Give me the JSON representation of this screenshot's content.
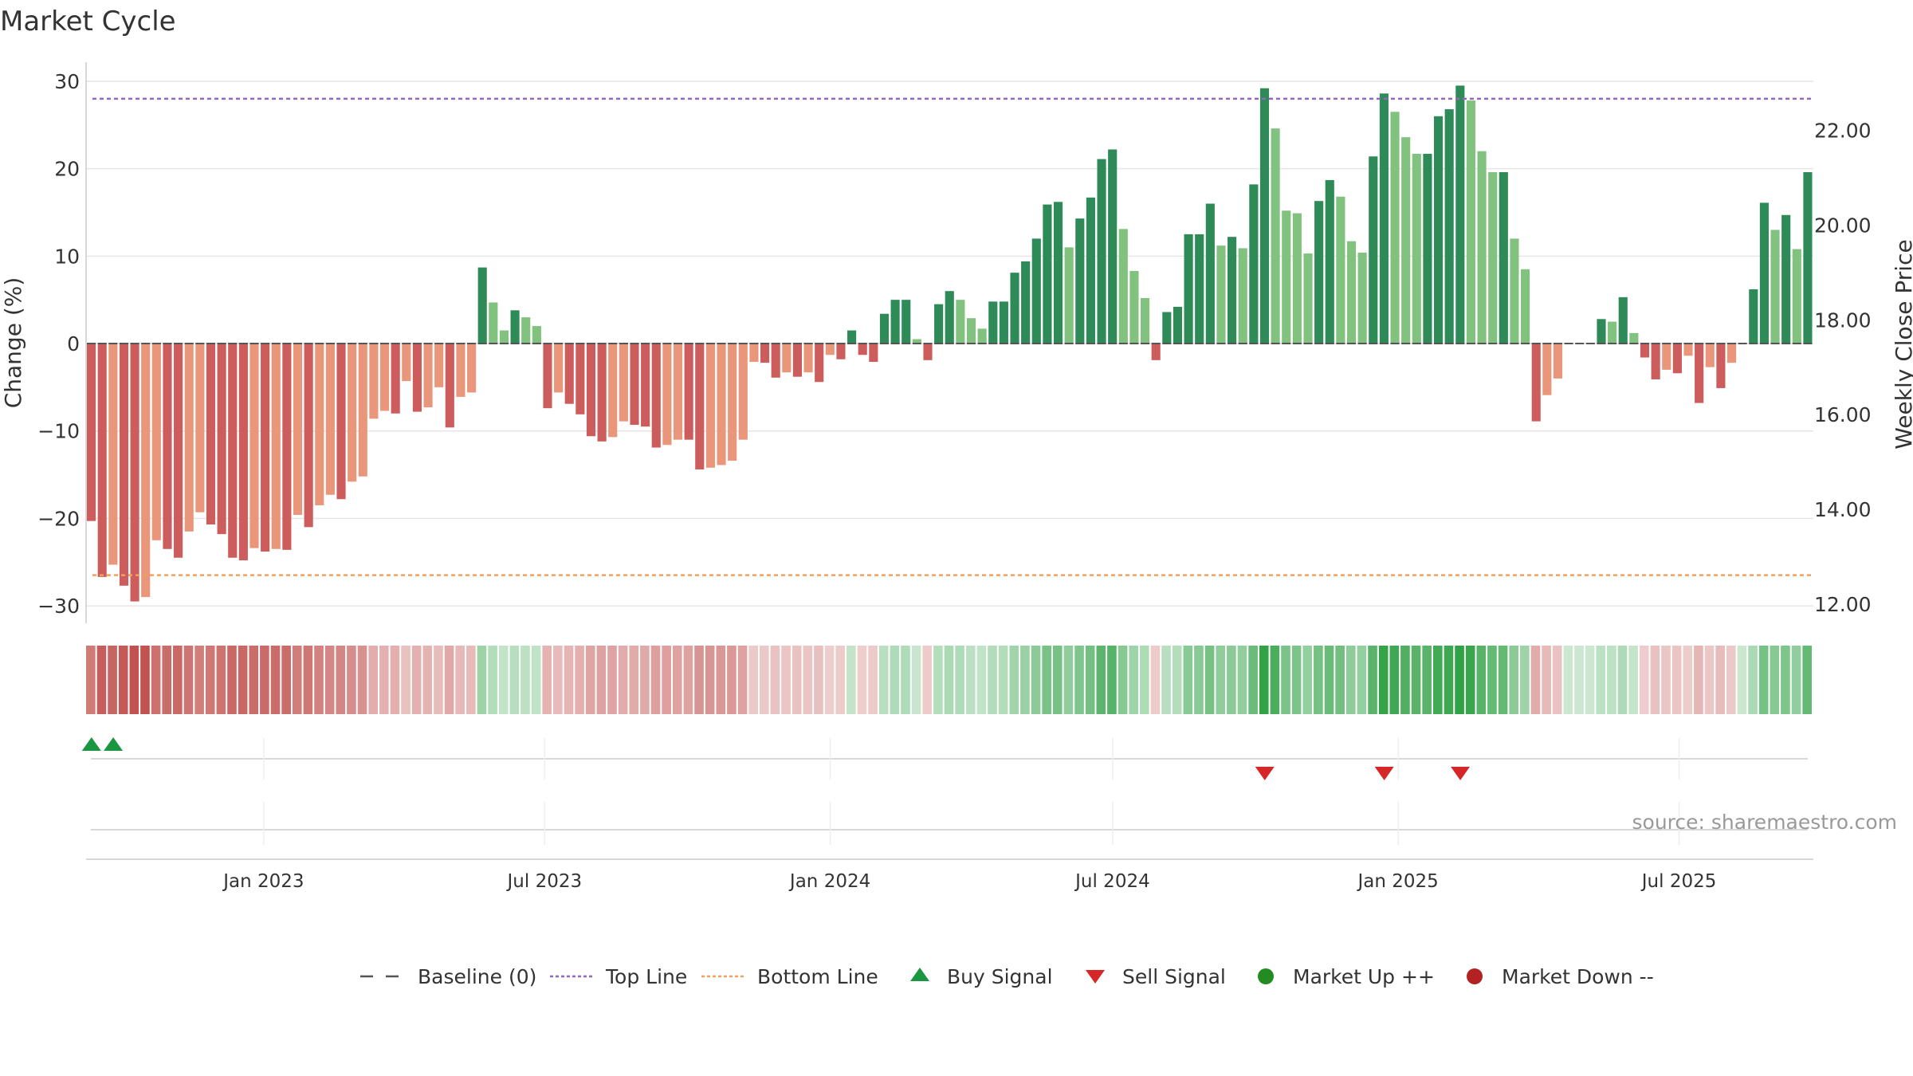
{
  "chart_data": {
    "type": "bar",
    "title": "Market Cycle",
    "ylabel": "Change (%)",
    "y2label": "Weekly Close Price",
    "ylim": [
      -32,
      32
    ],
    "y2lim": [
      11.6,
      23.4
    ],
    "yticks": [
      30,
      20,
      10,
      0,
      -10,
      -20,
      -30
    ],
    "ytick_labels": [
      "30",
      "20",
      "10",
      "0",
      "−10",
      "−20",
      "−30"
    ],
    "y2ticks": [
      22,
      20,
      18,
      16,
      14,
      12
    ],
    "y2tick_labels": [
      "22.00",
      "20.00",
      "18.00",
      "16.00",
      "14.00",
      "12.00"
    ],
    "x_start": "2022-09-12",
    "x_step_days": 7,
    "xticks": [
      {
        "date": "2023-01-01",
        "label": "Jan 2023"
      },
      {
        "date": "2023-07-01",
        "label": "Jul 2023"
      },
      {
        "date": "2024-01-01",
        "label": "Jan 2024"
      },
      {
        "date": "2024-07-01",
        "label": "Jul 2024"
      },
      {
        "date": "2025-01-01",
        "label": "Jan 2025"
      },
      {
        "date": "2025-07-01",
        "label": "Jul 2025"
      }
    ],
    "top_line": 28,
    "bottom_line": -26.5,
    "baseline": 0,
    "values": [
      -20.3,
      -26.7,
      -25.3,
      -27.7,
      -29.5,
      -29,
      -22.5,
      -23.5,
      -24.5,
      -21.5,
      -19.3,
      -20.7,
      -21.8,
      -24.5,
      -24.8,
      -23.4,
      -23.8,
      -23.5,
      -23.6,
      -19.6,
      -21,
      -18.5,
      -17.3,
      -17.8,
      -15.8,
      -15.2,
      -8.6,
      -7.7,
      -8,
      -4.3,
      -7.8,
      -7.3,
      -5,
      -9.6,
      -6.1,
      -5.6,
      8.7,
      4.7,
      1.5,
      3.8,
      3,
      2,
      -7.4,
      -5.6,
      -6.9,
      -8.1,
      -10.6,
      -11.2,
      -10.7,
      -8.9,
      -9.3,
      -9.5,
      -11.9,
      -11.6,
      -11,
      -11,
      -14.4,
      -14.2,
      -13.9,
      -13.4,
      -11,
      -2.1,
      -2.2,
      -3.9,
      -3.3,
      -3.8,
      -3.3,
      -4.4,
      -1.3,
      -1.8,
      1.5,
      -1.3,
      -2.1,
      3.4,
      5,
      5,
      0.5,
      -1.9,
      4.5,
      6,
      5,
      2.9,
      1.7,
      4.8,
      4.8,
      8.1,
      9.4,
      12,
      15.9,
      16.2,
      11,
      14.3,
      16.7,
      21.1,
      22.2,
      13.1,
      8.3,
      5.2,
      -1.9,
      3.6,
      4.2,
      12.5,
      12.5,
      16,
      11.2,
      12.2,
      10.9,
      18.2,
      29.2,
      24.6,
      15.2,
      14.9,
      10.3,
      16.3,
      18.7,
      16.8,
      11.7,
      10.4,
      21.4,
      28.6,
      26.5,
      23.6,
      21.7,
      21.7,
      26,
      26.8,
      29.5,
      27.8,
      22,
      19.6,
      19.6,
      12,
      8.5,
      -8.9,
      -5.9,
      -4,
      0,
      0,
      0,
      2.8,
      2.5,
      5.3,
      1.2,
      -1.6,
      -4.1,
      -3,
      -3.4,
      -1.4,
      -6.8,
      -2.7,
      -5.1,
      -2.2,
      0,
      6.2,
      16.1,
      13,
      14.7,
      10.8,
      19.6
    ],
    "signals": [
      {
        "type": "buy",
        "index": 0
      },
      {
        "type": "buy",
        "index": 2
      },
      {
        "type": "sell",
        "index": 108
      },
      {
        "type": "sell",
        "index": 119
      },
      {
        "type": "sell",
        "index": 126
      }
    ],
    "legend": [
      {
        "label": "Baseline (0)",
        "symbol": "dash",
        "color": "#555555"
      },
      {
        "label": "Top Line",
        "symbol": "dotted",
        "color": "#9467bd"
      },
      {
        "label": "Bottom Line",
        "symbol": "dotted",
        "color": "#f0a060"
      },
      {
        "label": "Buy Signal",
        "symbol": "triangle-up",
        "color": "#1a9641"
      },
      {
        "label": "Sell Signal",
        "symbol": "triangle-down",
        "color": "#d62728"
      },
      {
        "label": "Market Up ++",
        "symbol": "circle",
        "color": "#228b22"
      },
      {
        "label": "Market Down --",
        "symbol": "circle",
        "color": "#b22222"
      }
    ],
    "legend_position": "bottom",
    "grid": true,
    "source": "source: sharemaestro.com",
    "colors": {
      "up_strong": "#2e8b57",
      "up_light": "#82c27f",
      "down_strong": "#cd5c5c",
      "down_light": "#e9967a",
      "top_line": "#9467bd",
      "bottom_line": "#f0a060",
      "buy": "#1a9641",
      "sell": "#d62728"
    }
  }
}
